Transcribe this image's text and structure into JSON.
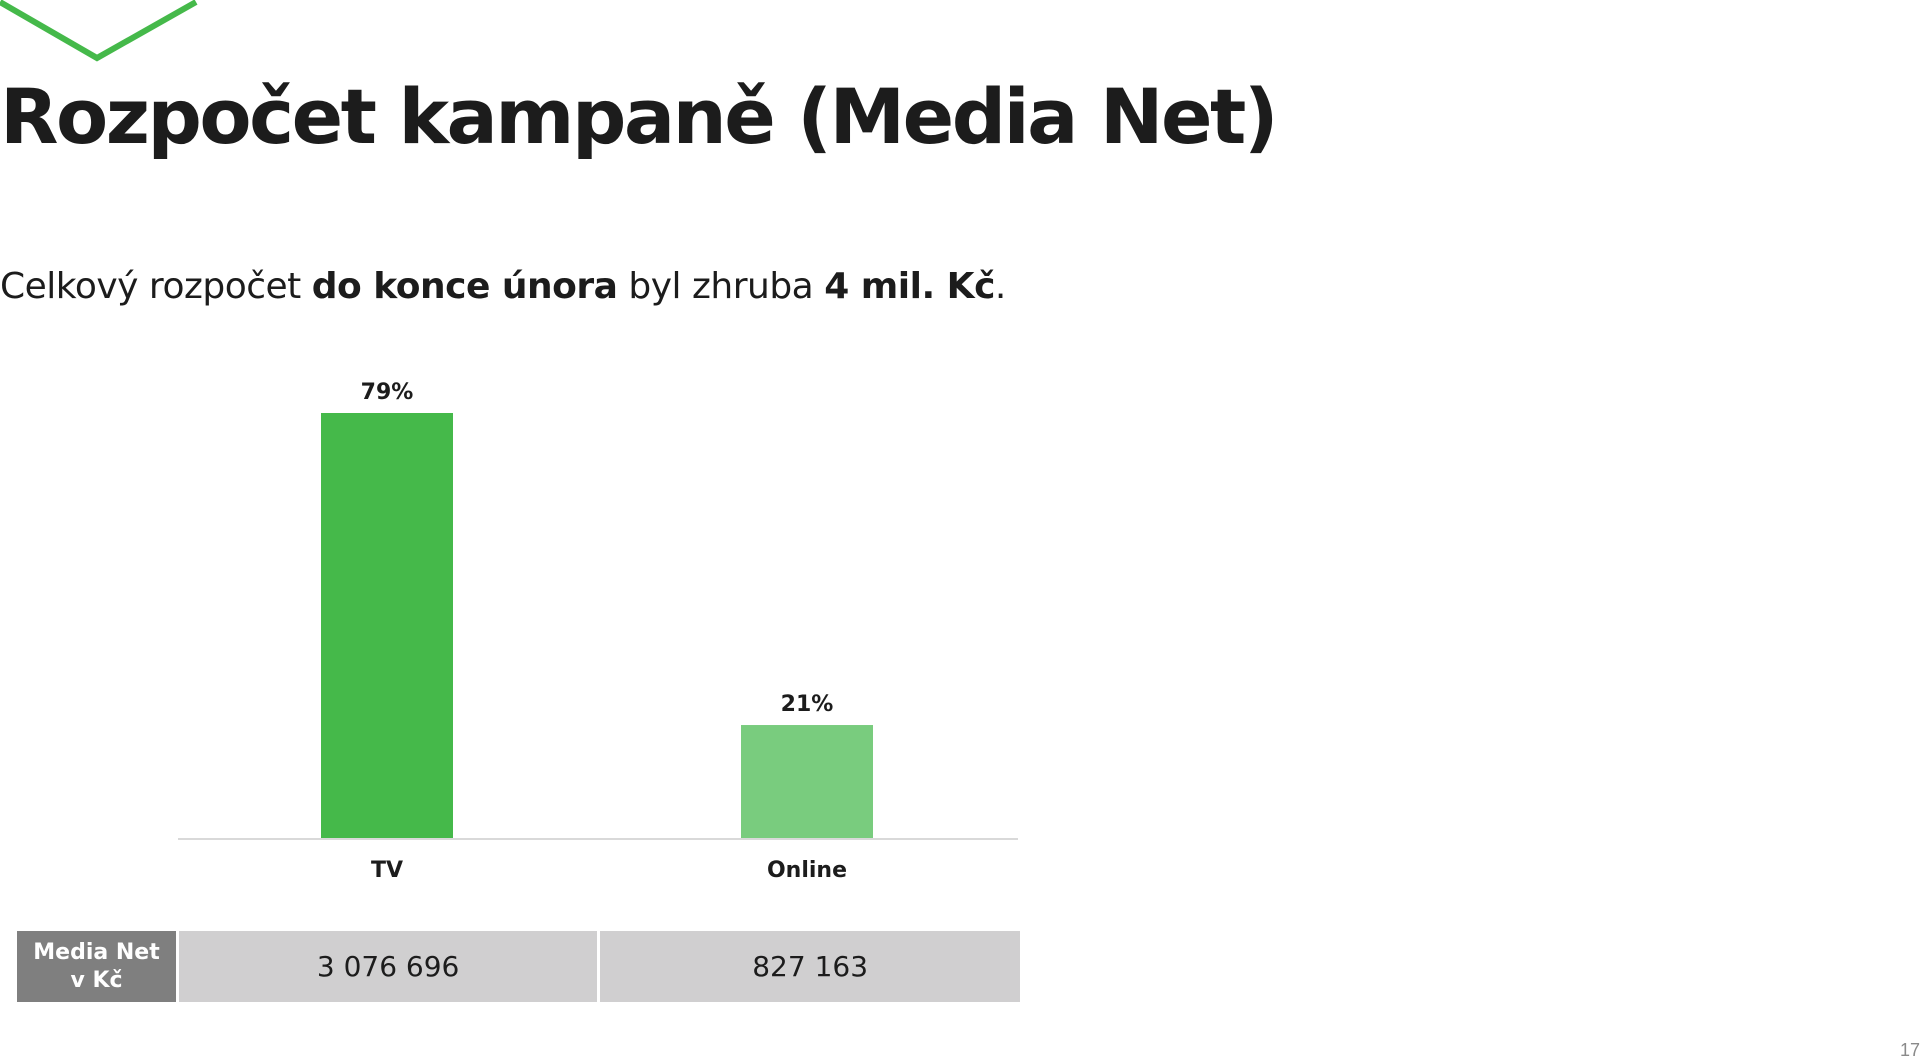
{
  "slide": {
    "title": "Rozpočet kampaně (Media Net)",
    "subtitle": {
      "part1": "Celkový rozpočet ",
      "part2": "do konce února",
      "part3": " byl zhruba ",
      "part4": "4 mil. Kč",
      "part5": "."
    },
    "page_number": "17"
  },
  "colors": {
    "accent": "#45b94a",
    "tv_bar": "#45b94a",
    "online_bar": "#79cc7e",
    "table_header_bg": "#7f7f7f",
    "table_cell_bg": "#d0cfd0"
  },
  "chart_data": {
    "type": "bar",
    "categories": [
      "TV",
      "Online"
    ],
    "values": [
      79,
      21
    ],
    "data_labels": [
      "79%",
      "21%"
    ],
    "ylim": [
      0,
      79
    ],
    "grid": false,
    "legend": "none"
  },
  "table": {
    "row_header": "Media Net v Kč",
    "row_header_line1": "Media Net",
    "row_header_line2": "v Kč",
    "values": [
      "3 076 696",
      "827 163"
    ]
  }
}
